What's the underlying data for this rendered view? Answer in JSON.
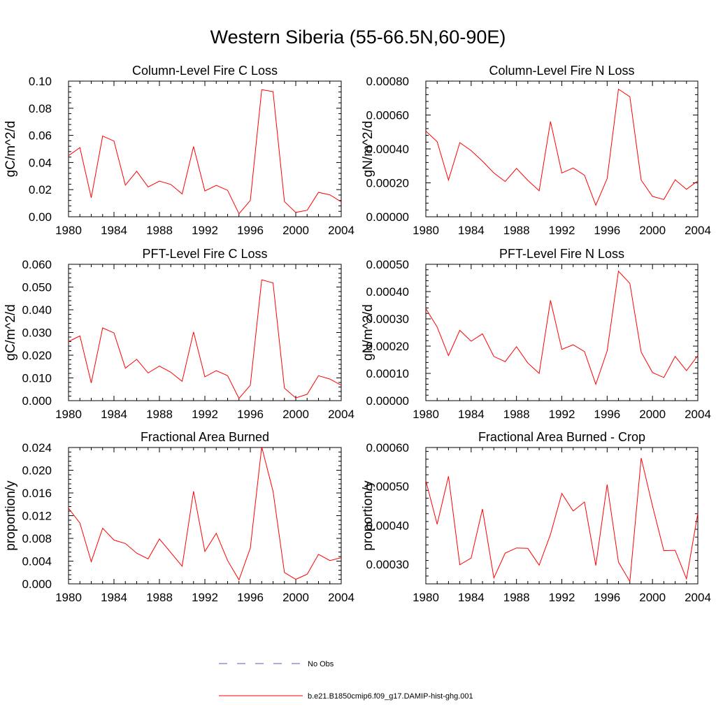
{
  "title": "Western Siberia (55-66.5N,60-90E)",
  "legend": {
    "items": [
      {
        "label": "No Obs",
        "style": "dashed",
        "color": "#5b5bb5"
      },
      {
        "label": "b.e21.B1850cmip6.f09_g17.DAMIP-hist-ghg.001",
        "style": "solid",
        "color": "#ff0000"
      }
    ]
  },
  "chart_data": [
    {
      "type": "line",
      "title": "Column-Level Fire C Loss",
      "ylabel": "gC/m^2/d",
      "xlim": [
        1980,
        2004
      ],
      "ylim": [
        0,
        0.1
      ],
      "xticks": [
        "1980",
        "1984",
        "1988",
        "1992",
        "1996",
        "2000",
        "2004"
      ],
      "yticks": [
        "0.00",
        "0.02",
        "0.04",
        "0.06",
        "0.08",
        "0.10"
      ],
      "yticks_values": [
        0,
        0.02,
        0.04,
        0.06,
        0.08,
        0.1
      ],
      "series": [
        {
          "color": "#ff0000",
          "x": [
            1980,
            1981,
            1982,
            1983,
            1984,
            1985,
            1986,
            1987,
            1988,
            1989,
            1990,
            1991,
            1992,
            1993,
            1994,
            1995,
            1996,
            1997,
            1998,
            1999,
            2000,
            2001,
            2002,
            2003,
            2004
          ],
          "values": [
            0.045,
            0.051,
            0.014,
            0.0595,
            0.0558,
            0.0233,
            0.0335,
            0.022,
            0.0263,
            0.0238,
            0.0168,
            0.0518,
            0.019,
            0.0232,
            0.0195,
            0.0022,
            0.012,
            0.0937,
            0.0922,
            0.0112,
            0.0032,
            0.0048,
            0.018,
            0.0162,
            0.011
          ]
        }
      ]
    },
    {
      "type": "line",
      "title": "Column-Level Fire N Loss",
      "ylabel": "gN/m^2/d",
      "xlim": [
        1980,
        2004
      ],
      "ylim": [
        0,
        0.0008
      ],
      "xticks": [
        "1980",
        "1984",
        "1988",
        "1992",
        "1996",
        "2000",
        "2004"
      ],
      "yticks": [
        "0.00000",
        "0.00020",
        "0.00040",
        "0.00060",
        "0.00080"
      ],
      "yticks_values": [
        0,
        0.0002,
        0.0004,
        0.0006,
        0.0008
      ],
      "series": [
        {
          "color": "#ff0000",
          "x": [
            1980,
            1981,
            1982,
            1983,
            1984,
            1985,
            1986,
            1987,
            1988,
            1989,
            1990,
            1991,
            1992,
            1993,
            1994,
            1995,
            1996,
            1997,
            1998,
            1999,
            2000,
            2001,
            2002,
            2003,
            2004
          ],
          "values": [
            0.000505,
            0.000443,
            0.000216,
            0.000437,
            0.00039,
            0.000328,
            0.000258,
            0.000208,
            0.000285,
            0.000215,
            0.000153,
            0.000562,
            0.000258,
            0.000288,
            0.000245,
            6.8e-05,
            0.000225,
            0.000752,
            0.000708,
            0.000216,
            0.00012,
            0.000102,
            0.000218,
            0.000162,
            0.000212
          ]
        }
      ]
    },
    {
      "type": "line",
      "title": "PFT-Level Fire C Loss",
      "ylabel": "gC/m^2/d",
      "xlim": [
        1980,
        2004
      ],
      "ylim": [
        0,
        0.06
      ],
      "xticks": [
        "1980",
        "1984",
        "1988",
        "1992",
        "1996",
        "2000",
        "2004"
      ],
      "yticks": [
        "0.000",
        "0.010",
        "0.020",
        "0.030",
        "0.040",
        "0.050",
        "0.060"
      ],
      "yticks_values": [
        0,
        0.01,
        0.02,
        0.03,
        0.04,
        0.05,
        0.06
      ],
      "series": [
        {
          "color": "#ff0000",
          "x": [
            1980,
            1981,
            1982,
            1983,
            1984,
            1985,
            1986,
            1987,
            1988,
            1989,
            1990,
            1991,
            1992,
            1993,
            1994,
            1995,
            1996,
            1997,
            1998,
            1999,
            2000,
            2001,
            2002,
            2003,
            2004
          ],
          "values": [
            0.026,
            0.0285,
            0.0078,
            0.032,
            0.0298,
            0.0143,
            0.0182,
            0.0122,
            0.0152,
            0.0125,
            0.0085,
            0.0302,
            0.0105,
            0.0132,
            0.011,
            0.001,
            0.0068,
            0.0532,
            0.0518,
            0.0055,
            0.0012,
            0.0028,
            0.011,
            0.0095,
            0.0068
          ]
        }
      ]
    },
    {
      "type": "line",
      "title": "PFT-Level Fire N Loss",
      "ylabel": "gN/m^2/d",
      "xlim": [
        1980,
        2004
      ],
      "ylim": [
        0,
        0.0005
      ],
      "xticks": [
        "1980",
        "1984",
        "1988",
        "1992",
        "1996",
        "2000",
        "2004"
      ],
      "yticks": [
        "0.00000",
        "0.00010",
        "0.00020",
        "0.00030",
        "0.00040",
        "0.00050"
      ],
      "yticks_values": [
        0,
        0.0001,
        0.0002,
        0.0003,
        0.0004,
        0.0005
      ],
      "series": [
        {
          "color": "#ff0000",
          "x": [
            1980,
            1981,
            1982,
            1983,
            1984,
            1985,
            1986,
            1987,
            1988,
            1989,
            1990,
            1991,
            1992,
            1993,
            1994,
            1995,
            1996,
            1997,
            1998,
            1999,
            2000,
            2001,
            2002,
            2003,
            2004
          ],
          "values": [
            0.000338,
            0.00027,
            0.000165,
            0.000258,
            0.000218,
            0.000245,
            0.000162,
            0.000143,
            0.000198,
            0.000138,
            0.0001,
            0.000368,
            0.000188,
            0.000205,
            0.00018,
            6e-05,
            0.000182,
            0.000475,
            0.00043,
            0.000178,
            0.000103,
            8.5e-05,
            0.000162,
            0.00011,
            0.000165
          ]
        }
      ]
    },
    {
      "type": "line",
      "title": "Fractional Area Burned",
      "ylabel": "proportion/y",
      "xlim": [
        1980,
        2004
      ],
      "ylim": [
        0,
        0.024
      ],
      "xticks": [
        "1980",
        "1984",
        "1988",
        "1992",
        "1996",
        "2000",
        "2004"
      ],
      "yticks": [
        "0.000",
        "0.004",
        "0.008",
        "0.012",
        "0.016",
        "0.020",
        "0.024"
      ],
      "yticks_values": [
        0,
        0.004,
        0.008,
        0.012,
        0.016,
        0.02,
        0.024
      ],
      "series": [
        {
          "color": "#ff0000",
          "x": [
            1980,
            1981,
            1982,
            1983,
            1984,
            1985,
            1986,
            1987,
            1988,
            1989,
            1990,
            1991,
            1992,
            1993,
            1994,
            1995,
            1996,
            1997,
            1998,
            1999,
            2000,
            2001,
            2002,
            2003,
            2004
          ],
          "values": [
            0.0133,
            0.0107,
            0.0039,
            0.0098,
            0.0077,
            0.0071,
            0.0054,
            0.0044,
            0.0079,
            0.0055,
            0.0031,
            0.0163,
            0.0057,
            0.0089,
            0.0041,
            0.0007,
            0.0063,
            0.0241,
            0.0163,
            0.002,
            0.0008,
            0.0017,
            0.0052,
            0.0041,
            0.0046
          ]
        }
      ]
    },
    {
      "type": "line",
      "title": "Fractional Area Burned - Crop",
      "ylabel": "proportion/y",
      "xlim": [
        1980,
        2004
      ],
      "ylim": [
        0.00025,
        0.0006
      ],
      "xticks": [
        "1980",
        "1984",
        "1988",
        "1992",
        "1996",
        "2000",
        "2004"
      ],
      "yticks": [
        "0.00030",
        "0.00040",
        "0.00050",
        "0.00060"
      ],
      "yticks_values": [
        0.0003,
        0.0004,
        0.0005,
        0.0006
      ],
      "series": [
        {
          "color": "#ff0000",
          "x": [
            1980,
            1981,
            1982,
            1983,
            1984,
            1985,
            1986,
            1987,
            1988,
            1989,
            1990,
            1991,
            1992,
            1993,
            1994,
            1995,
            1996,
            1997,
            1998,
            1999,
            2000,
            2001,
            2002,
            2003,
            2004
          ],
          "values": [
            0.000515,
            0.000403,
            0.000526,
            0.000299,
            0.000316,
            0.000442,
            0.000265,
            0.000329,
            0.000342,
            0.000341,
            0.000298,
            0.000377,
            0.000482,
            0.000437,
            0.00046,
            0.000297,
            0.000505,
            0.000306,
            0.000256,
            0.000573,
            0.00045,
            0.000335,
            0.000336,
            0.000263,
            0.000431
          ]
        }
      ]
    }
  ]
}
